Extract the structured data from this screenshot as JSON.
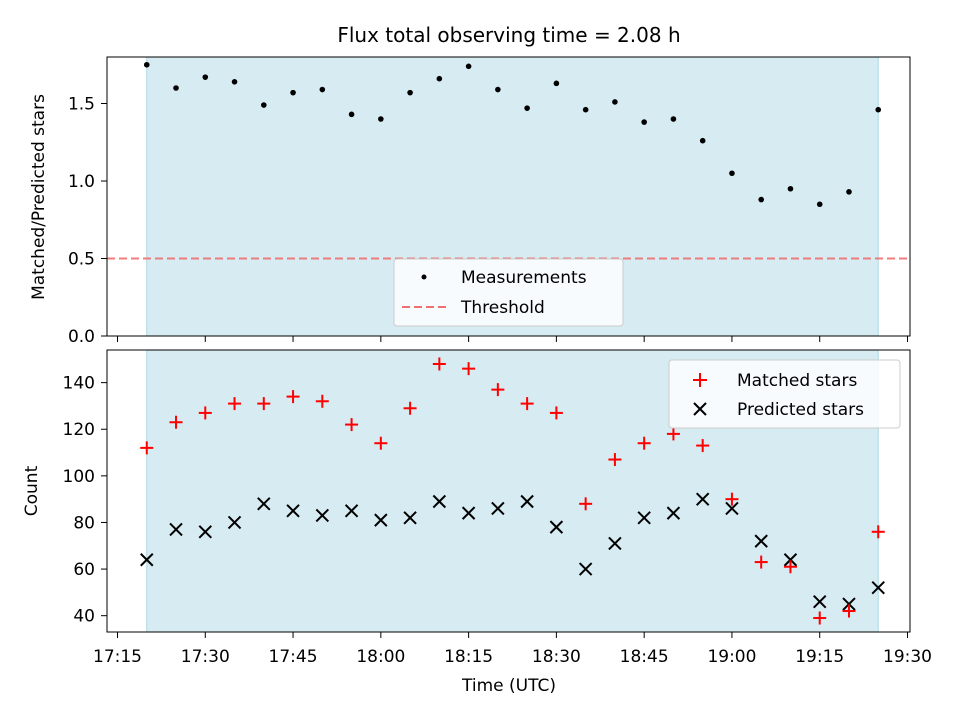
{
  "chart_data": {
    "title": "Flux total observing time = 2.08 h",
    "xlabel": "Time (UTC)",
    "x_ticks": [
      "17:15",
      "17:30",
      "17:45",
      "18:00",
      "18:15",
      "18:30",
      "18:45",
      "19:00",
      "19:15",
      "19:30"
    ],
    "shaded_interval": [
      "17:20",
      "19:25"
    ],
    "shade_color": "#add8e6",
    "x_times": [
      "17:20",
      "17:25",
      "17:30",
      "17:35",
      "17:40",
      "17:45",
      "17:50",
      "17:55",
      "18:00",
      "18:05",
      "18:10",
      "18:15",
      "18:20",
      "18:25",
      "18:30",
      "18:35",
      "18:40",
      "18:45",
      "18:50",
      "18:55",
      "19:00",
      "19:05",
      "19:10",
      "19:15",
      "19:20",
      "19:25"
    ],
    "panels": [
      {
        "type": "scatter",
        "ylabel": "Matched/Predicted stars",
        "ylim": [
          0,
          1.8
        ],
        "y_ticks": [
          "0.0",
          "0.5",
          "1.0",
          "1.5"
        ],
        "legend_position": "lower-center",
        "series": [
          {
            "name": "Measurements",
            "marker": "dot",
            "color": "#000000",
            "values": [
              1.75,
              1.6,
              1.67,
              1.64,
              1.49,
              1.57,
              1.59,
              1.43,
              1.4,
              1.57,
              1.66,
              1.74,
              1.59,
              1.47,
              1.63,
              1.46,
              1.51,
              1.38,
              1.4,
              1.26,
              1.05,
              0.88,
              0.95,
              0.85,
              0.93,
              1.46
            ]
          }
        ],
        "threshold": {
          "name": "Threshold",
          "value": 0.5,
          "style": "dashed",
          "color": "#f07070"
        }
      },
      {
        "type": "scatter",
        "ylabel": "Count",
        "ylim": [
          33,
          154
        ],
        "y_ticks": [
          "40",
          "60",
          "80",
          "100",
          "120",
          "140"
        ],
        "legend_position": "upper-right",
        "series": [
          {
            "name": "Matched stars",
            "marker": "plus",
            "color": "#ff0000",
            "values": [
              112,
              123,
              127,
              131,
              131,
              134,
              132,
              122,
              114,
              129,
              148,
              146,
              137,
              131,
              127,
              88,
              107,
              114,
              118,
              113,
              90,
              63,
              61,
              39,
              42,
              76
            ]
          },
          {
            "name": "Predicted stars",
            "marker": "x",
            "color": "#000000",
            "values": [
              64,
              77,
              76,
              80,
              88,
              85,
              83,
              85,
              81,
              82,
              89,
              84,
              86,
              89,
              78,
              60,
              71,
              82,
              84,
              90,
              86,
              72,
              64,
              46,
              45,
              52
            ]
          }
        ]
      }
    ]
  }
}
